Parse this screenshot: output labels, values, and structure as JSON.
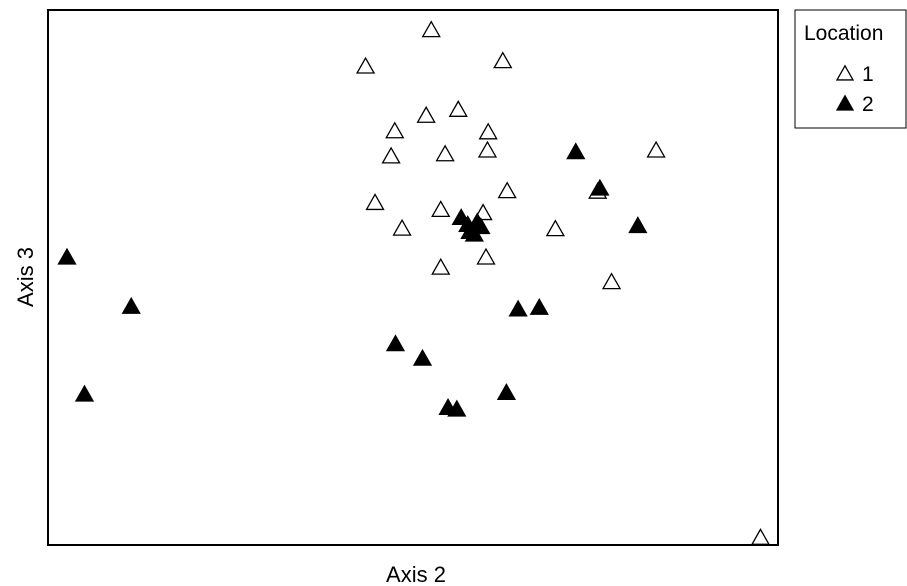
{
  "chart_data": {
    "type": "scatter",
    "title": "",
    "xlabel": "Axis 2",
    "ylabel": "Axis 3",
    "xlim": [
      0,
      100
    ],
    "ylim": [
      0,
      100
    ],
    "grid": false,
    "legend": {
      "title": "Location",
      "placement": "top-right, outside plot"
    },
    "series": [
      {
        "name": "1",
        "marker": "open-triangle",
        "color": "#000000",
        "points": [
          [
            52.5,
            96.2
          ],
          [
            43.5,
            89.4
          ],
          [
            62.3,
            90.4
          ],
          [
            56.2,
            81.3
          ],
          [
            51.8,
            80.2
          ],
          [
            47.5,
            77.3
          ],
          [
            60.3,
            77.1
          ],
          [
            54.4,
            73.0
          ],
          [
            47.0,
            72.6
          ],
          [
            60.2,
            73.7
          ],
          [
            83.3,
            73.7
          ],
          [
            62.9,
            66.1
          ],
          [
            75.3,
            66.0
          ],
          [
            44.8,
            63.9
          ],
          [
            53.8,
            62.6
          ],
          [
            59.6,
            62.0
          ],
          [
            48.5,
            59.1
          ],
          [
            69.5,
            59.0
          ],
          [
            53.8,
            51.8
          ],
          [
            60.0,
            53.7
          ],
          [
            77.2,
            49.1
          ],
          [
            97.6,
            1.3
          ]
        ]
      },
      {
        "name": "2",
        "marker": "filled-triangle",
        "color": "#000000",
        "points": [
          [
            2.6,
            53.7
          ],
          [
            11.4,
            44.5
          ],
          [
            5.0,
            28.1
          ],
          [
            72.3,
            73.4
          ],
          [
            75.6,
            66.6
          ],
          [
            80.8,
            59.6
          ],
          [
            56.6,
            61.1
          ],
          [
            57.5,
            59.8
          ],
          [
            58.8,
            60.3
          ],
          [
            59.3,
            59.4
          ],
          [
            57.8,
            58.5
          ],
          [
            58.4,
            58.0
          ],
          [
            64.4,
            44.0
          ],
          [
            67.3,
            44.3
          ],
          [
            47.6,
            37.5
          ],
          [
            51.3,
            34.8
          ],
          [
            62.8,
            28.4
          ],
          [
            54.8,
            25.6
          ],
          [
            56.0,
            25.3
          ]
        ]
      }
    ]
  }
}
